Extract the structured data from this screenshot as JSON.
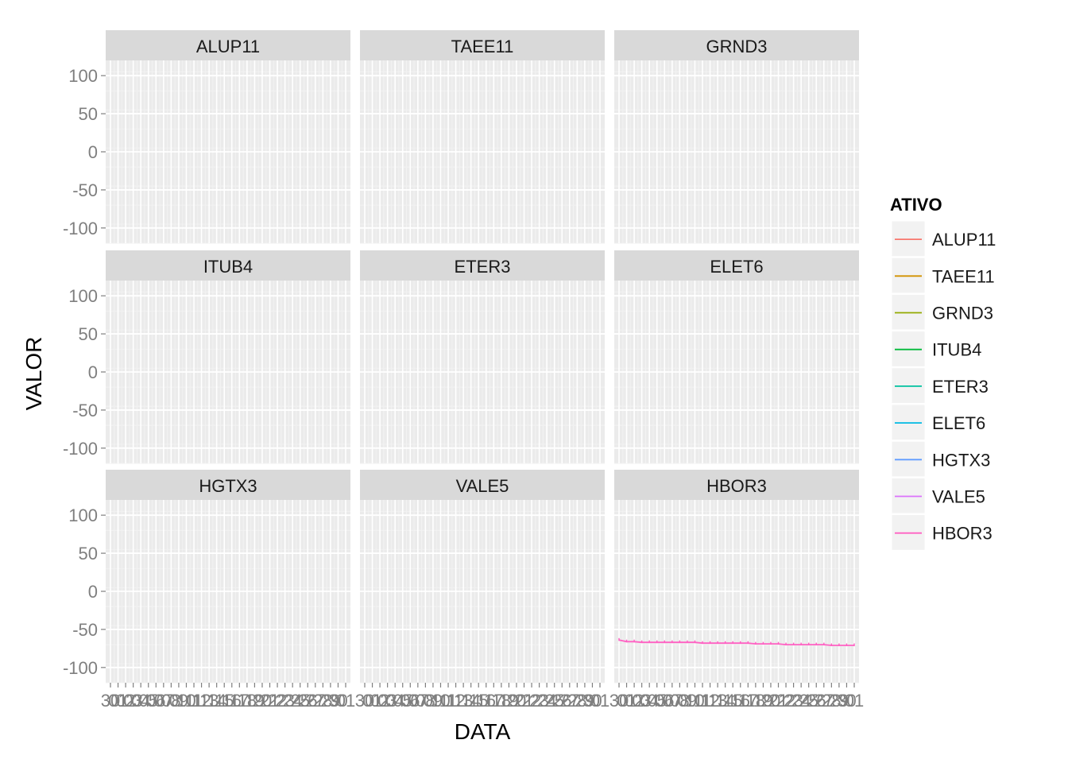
{
  "chart_data": {
    "type": "line",
    "facet_layout": "3x3 grid",
    "xlabel": "DATA",
    "ylabel": "VALOR",
    "ylim": [
      -120,
      120
    ],
    "yticks": [
      -100,
      -50,
      0,
      50,
      100
    ],
    "grid": true,
    "x_tick_labels": [
      "30",
      "01",
      "02",
      "03",
      "04",
      "05",
      "06",
      "07",
      "08",
      "09",
      "10",
      "11",
      "12",
      "13",
      "14",
      "15",
      "16",
      "17",
      "18",
      "19",
      "20",
      "21",
      "22",
      "23",
      "24",
      "25",
      "26",
      "27",
      "28",
      "29",
      "30",
      "01"
    ],
    "legend": {
      "title": "ATIVO",
      "placement": "right",
      "entries": [
        {
          "name": "ALUP11",
          "color": "#F8766D"
        },
        {
          "name": "TAEE11",
          "color": "#D39200"
        },
        {
          "name": "GRND3",
          "color": "#93AA00"
        },
        {
          "name": "ITUB4",
          "color": "#00BA38"
        },
        {
          "name": "ETER3",
          "color": "#00C19F"
        },
        {
          "name": "ELET6",
          "color": "#00B9E3"
        },
        {
          "name": "HGTX3",
          "color": "#619CFF"
        },
        {
          "name": "VALE5",
          "color": "#DB72FB"
        },
        {
          "name": "HBOR3",
          "color": "#FF61C3"
        }
      ]
    },
    "panels": [
      {
        "name": "ALUP11",
        "values": []
      },
      {
        "name": "TAEE11",
        "values": []
      },
      {
        "name": "GRND3",
        "values": []
      },
      {
        "name": "ITUB4",
        "values": []
      },
      {
        "name": "ETER3",
        "values": []
      },
      {
        "name": "ELET6",
        "values": []
      },
      {
        "name": "HGTX3",
        "values": []
      },
      {
        "name": "VALE5",
        "values": []
      },
      {
        "name": "HBOR3",
        "values": [
          -64,
          -66,
          -66,
          -67,
          -67,
          -67,
          -67,
          -67,
          -67,
          -67,
          -67,
          -68,
          -68,
          -68,
          -68,
          -68,
          -68,
          -68,
          -69,
          -69,
          -69,
          -69,
          -70,
          -70,
          -70,
          -70,
          -70,
          -70,
          -71,
          -71,
          -71,
          -71
        ]
      }
    ]
  }
}
